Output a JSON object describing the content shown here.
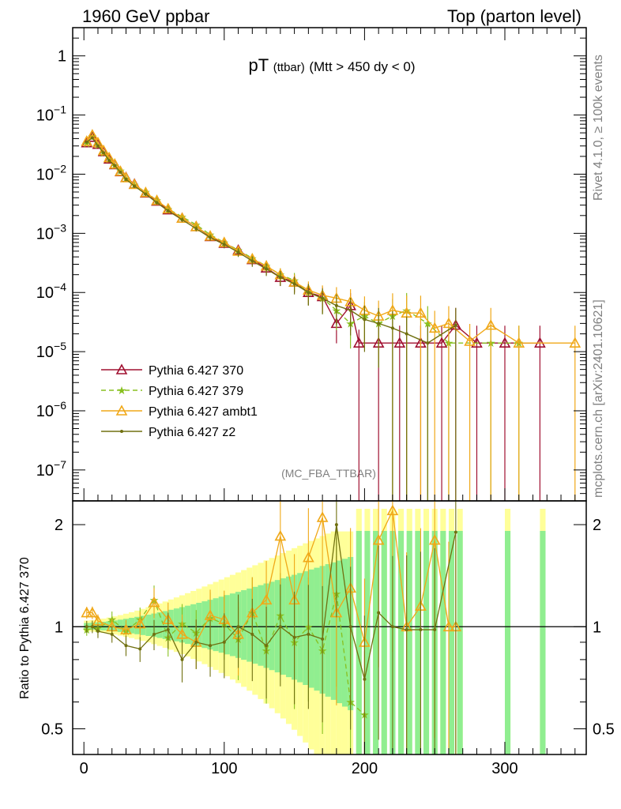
{
  "header": {
    "left": "1960 GeV ppbar",
    "right": "Top (parton level)"
  },
  "side_text": {
    "rivet": "Rivet 4.1.0, ≥ 100k events",
    "mcplots": "mcplots.cern.ch [arXiv:2401.10621]"
  },
  "watermark": "(MC_FBA_TTBAR)",
  "chart_data": [
    {
      "panel": "main",
      "type": "line",
      "title": {
        "main": "pT",
        "sub": "(ttbar)",
        "cut": "(Mtt > 450 dy < 0)"
      },
      "yscale": "log",
      "xlim": [
        -8,
        358
      ],
      "ylim": [
        3e-08,
        3
      ],
      "y_ticks": [
        {
          "v": 1,
          "b": "1",
          "e": ""
        },
        {
          "v": 0.1,
          "b": "10",
          "e": "−1"
        },
        {
          "v": 0.01,
          "b": "10",
          "e": "−2"
        },
        {
          "v": 0.001,
          "b": "10",
          "e": "−3"
        },
        {
          "v": 0.0001,
          "b": "10",
          "e": "−4"
        },
        {
          "v": 1e-05,
          "b": "10",
          "e": "−5"
        },
        {
          "v": 1e-06,
          "b": "10",
          "e": "−6"
        },
        {
          "v": 1e-07,
          "b": "10",
          "e": "−7"
        }
      ],
      "legend_position": "bottom-left",
      "series": [
        {
          "name": "Pythia 6.427 370",
          "color": "#a01030",
          "marker": "triangle-open",
          "dash": "",
          "x": [
            2,
            6,
            10,
            14,
            18,
            22,
            26,
            30,
            36,
            44,
            52,
            60,
            70,
            80,
            90,
            100,
            110,
            120,
            130,
            140,
            150,
            160,
            170,
            180,
            190,
            196,
            210,
            225,
            240,
            255,
            265,
            280,
            300,
            325
          ],
          "y": [
            0.034,
            0.042,
            0.032,
            0.024,
            0.018,
            0.0145,
            0.011,
            0.0088,
            0.0068,
            0.0048,
            0.0035,
            0.0025,
            0.0018,
            0.0013,
            0.00088,
            0.00068,
            0.00052,
            0.00036,
            0.00026,
            0.00018,
            0.00015,
            0.0001,
            8.5e-05,
            3e-05,
            6e-05,
            1.4e-05,
            1.4e-05,
            1.4e-05,
            1.4e-05,
            1.4e-05,
            2.8e-05,
            1.4e-05,
            1.4e-05,
            1.4e-05
          ]
        },
        {
          "name": "Pythia 6.427 379",
          "color": "#88c020",
          "marker": "star",
          "dash": "6,4",
          "x": [
            2,
            6,
            10,
            14,
            18,
            22,
            26,
            30,
            36,
            44,
            52,
            60,
            70,
            80,
            90,
            100,
            110,
            120,
            130,
            140,
            150,
            160,
            170,
            180,
            190,
            200,
            210,
            220,
            230,
            245,
            260,
            290,
            310
          ],
          "y": [
            0.033,
            0.044,
            0.031,
            0.023,
            0.018,
            0.014,
            0.0115,
            0.0085,
            0.0066,
            0.005,
            0.0036,
            0.0026,
            0.0019,
            0.0014,
            0.00095,
            0.0007,
            0.00052,
            0.00038,
            0.00028,
            0.0002,
            0.00016,
            0.0001,
            8e-05,
            5e-05,
            3e-05,
            4e-05,
            3e-05,
            4e-05,
            5e-05,
            3e-05,
            1.4e-05,
            1.4e-05,
            1.4e-05
          ]
        },
        {
          "name": "Pythia 6.427 ambt1",
          "color": "#f0a818",
          "marker": "triangle-open",
          "dash": "",
          "x": [
            2,
            6,
            10,
            14,
            18,
            22,
            26,
            30,
            36,
            44,
            52,
            60,
            70,
            80,
            90,
            100,
            110,
            120,
            130,
            140,
            150,
            160,
            170,
            180,
            190,
            200,
            210,
            220,
            230,
            240,
            250,
            260,
            275,
            290,
            310,
            350
          ],
          "y": [
            0.036,
            0.046,
            0.034,
            0.025,
            0.019,
            0.0148,
            0.0112,
            0.0087,
            0.0067,
            0.0049,
            0.0036,
            0.0026,
            0.0018,
            0.0013,
            0.0009,
            0.0007,
            0.0005,
            0.00037,
            0.00028,
            0.0002,
            0.00015,
            0.00011,
            9e-05,
            8e-05,
            7e-05,
            5e-05,
            4e-05,
            5e-05,
            4.5e-05,
            4.5e-05,
            2.5e-05,
            3e-05,
            1.5e-05,
            2.8e-05,
            1.4e-05,
            1.4e-05
          ]
        },
        {
          "name": "Pythia 6.427 z2",
          "color": "#707010",
          "marker": "dot",
          "dash": "",
          "x": [
            2,
            6,
            10,
            14,
            18,
            22,
            26,
            30,
            36,
            44,
            52,
            60,
            70,
            80,
            90,
            100,
            110,
            120,
            130,
            140,
            150,
            160,
            170,
            180,
            190,
            200,
            210,
            220,
            230,
            245,
            265
          ],
          "y": [
            0.035,
            0.041,
            0.03,
            0.023,
            0.017,
            0.014,
            0.0108,
            0.0082,
            0.0063,
            0.0046,
            0.0033,
            0.0024,
            0.0017,
            0.0012,
            0.00085,
            0.00065,
            0.00048,
            0.00034,
            0.00025,
            0.00018,
            0.00014,
            0.0001,
            8e-05,
            6e-05,
            5e-05,
            3.5e-05,
            3e-05,
            2.5e-05,
            2e-05,
            1.4e-05,
            2.8e-05
          ]
        }
      ]
    },
    {
      "panel": "ratio",
      "type": "line",
      "ylabel": "Ratio to Pythia 6.427 370",
      "xlim": [
        -8,
        358
      ],
      "ylim": [
        0.42,
        2.35
      ],
      "yscale": "log",
      "x_ticks": [
        0,
        100,
        200,
        300
      ],
      "y_ticks": [
        "0.5",
        "1",
        "2"
      ],
      "reference": 1,
      "band_inner_color": "#90ee90",
      "band_outer_color": "#ffff99",
      "series": [
        {
          "name": "Pythia 6.427 379",
          "x": [
            2,
            10,
            20,
            30,
            40,
            50,
            60,
            70,
            80,
            90,
            100,
            110,
            120,
            130,
            140,
            150,
            160,
            170,
            180,
            190,
            200
          ],
          "y": [
            0.98,
            0.99,
            1.05,
            0.97,
            1.05,
            1.2,
            0.93,
            1.02,
            0.96,
            1.06,
            1.02,
            0.92,
            1.1,
            0.85,
            1.08,
            0.9,
            1.0,
            0.85,
            1.25,
            0.6,
            0.55
          ]
        },
        {
          "name": "Pythia 6.427 ambt1",
          "x": [
            2,
            6,
            10,
            20,
            30,
            40,
            50,
            60,
            70,
            80,
            90,
            100,
            110,
            120,
            130,
            140,
            150,
            160,
            170,
            180,
            190,
            200,
            210,
            220,
            230,
            240,
            250,
            260,
            265
          ],
          "y": [
            1.1,
            1.1,
            1.04,
            1.0,
            0.98,
            1.02,
            1.18,
            1.05,
            0.95,
            0.9,
            1.08,
            1.05,
            0.95,
            1.1,
            1.2,
            1.85,
            1.2,
            1.6,
            2.1,
            1.1,
            1.3,
            0.9,
            1.8,
            2.2,
            1.0,
            1.15,
            1.8,
            1.0,
            1.0
          ]
        },
        {
          "name": "Pythia 6.427 z2",
          "x": [
            2,
            6,
            10,
            20,
            30,
            40,
            50,
            60,
            70,
            80,
            90,
            100,
            110,
            120,
            130,
            140,
            150,
            160,
            170,
            180,
            190,
            200,
            210,
            220,
            230,
            240,
            250,
            265
          ],
          "y": [
            1.0,
            1.0,
            0.97,
            0.95,
            0.88,
            0.86,
            0.95,
            0.98,
            0.8,
            0.9,
            0.88,
            0.9,
            1.0,
            0.95,
            0.88,
            1.0,
            0.93,
            0.95,
            0.92,
            2.0,
            1.0,
            0.7,
            1.1,
            1.0,
            0.98,
            0.98,
            0.98,
            1.9
          ]
        }
      ]
    }
  ]
}
